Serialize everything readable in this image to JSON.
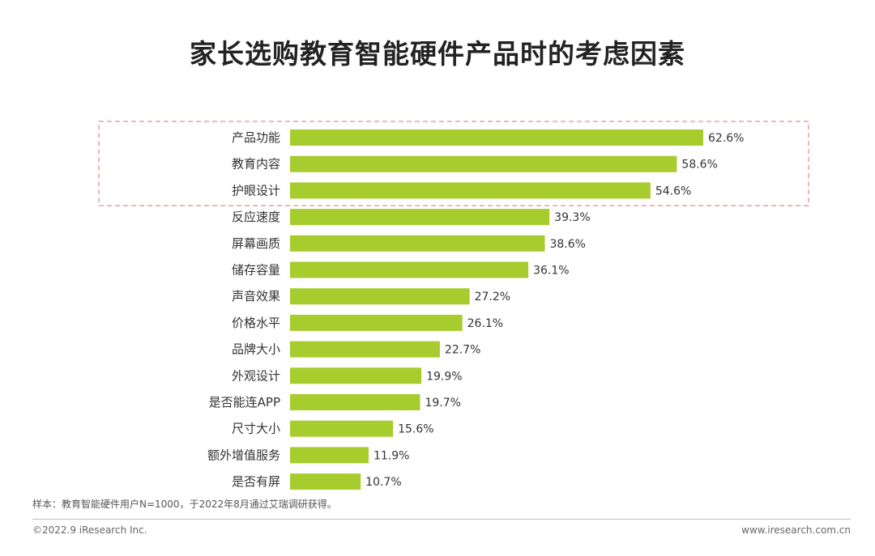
{
  "title": "家长选购教育智能硬件产品时的考虑因素",
  "chart_data": {
    "type": "bar",
    "orientation": "horizontal",
    "categories": [
      "产品功能",
      "教育内容",
      "护眼设计",
      "反应速度",
      "屏幕画质",
      "储存容量",
      "声音效果",
      "价格水平",
      "品牌大小",
      "外观设计",
      "是否能连APP",
      "尺寸大小",
      "额外增值服务",
      "是否有屏"
    ],
    "values": [
      62.6,
      58.6,
      54.6,
      39.3,
      38.6,
      36.1,
      27.2,
      26.1,
      22.7,
      19.9,
      19.7,
      15.6,
      11.9,
      10.7
    ],
    "value_labels": [
      "62.6%",
      "58.6%",
      "54.6%",
      "39.3%",
      "38.6%",
      "36.1%",
      "27.2%",
      "26.1%",
      "22.7%",
      "19.9%",
      "19.7%",
      "15.6%",
      "11.9%",
      "10.7%"
    ],
    "xlim": [
      0,
      62.6
    ],
    "grid": false,
    "bar_color": "#a6cc2e",
    "highlight": {
      "first_n": 3,
      "style": "dashed",
      "color": "#e8a0a0"
    }
  },
  "footer": {
    "note": "样本：教育智能硬件用户N=1000，于2022年8月通过艾瑞调研获得。",
    "copyright": "©2022.9 iResearch Inc.",
    "site": "www.iresearch.com.cn"
  }
}
